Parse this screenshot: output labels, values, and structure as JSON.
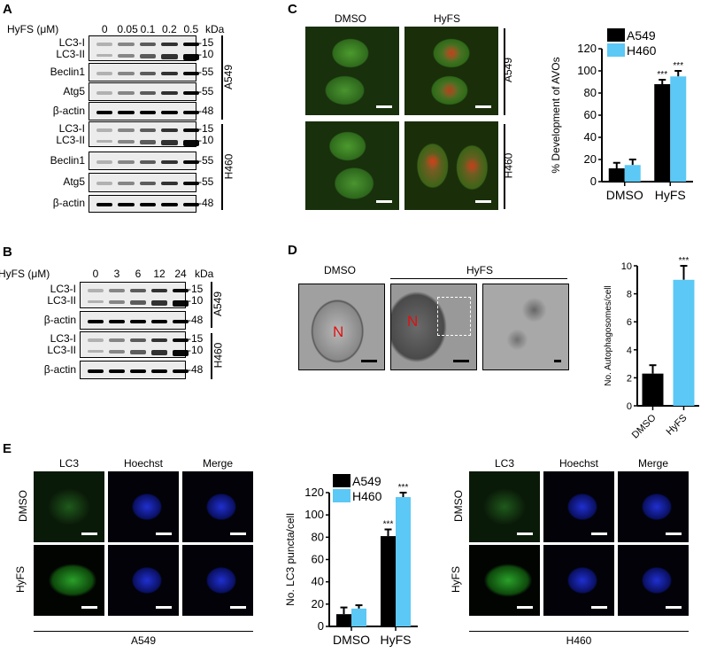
{
  "panels": {
    "a": "A",
    "b": "B",
    "c": "C",
    "d": "D",
    "e": "E"
  },
  "blotA": {
    "header": "HyFS (μM)",
    "doses": [
      "0",
      "0.05",
      "0.1",
      "0.2",
      "0.5"
    ],
    "unit": "kDa",
    "rows": [
      {
        "labels": [
          "LC3-I",
          "LC3-II"
        ],
        "kda": [
          "-15",
          "-10"
        ]
      },
      {
        "labels": [
          "Beclin1"
        ],
        "kda": [
          "-55"
        ]
      },
      {
        "labels": [
          "Atg5"
        ],
        "kda": [
          "-55"
        ]
      },
      {
        "labels": [
          "β-actin"
        ],
        "kda": [
          "-48"
        ]
      },
      {
        "labels": [
          "LC3-I",
          "LC3-II"
        ],
        "kda": [
          "-15",
          "-10"
        ]
      },
      {
        "labels": [
          "Beclin1"
        ],
        "kda": [
          "-55"
        ]
      },
      {
        "labels": [
          "Atg5"
        ],
        "kda": [
          "-55"
        ]
      },
      {
        "labels": [
          "β-actin"
        ],
        "kda": [
          "-48"
        ]
      }
    ],
    "groups": [
      "A549",
      "H460"
    ]
  },
  "blotB": {
    "header": "HyFS (μM)",
    "doses": [
      "0",
      "3",
      "6",
      "12",
      "24"
    ],
    "unit": "kDa",
    "rows": [
      {
        "labels": [
          "LC3-I",
          "LC3-II"
        ],
        "kda": [
          "-15",
          "-10"
        ]
      },
      {
        "labels": [
          "β-actin"
        ],
        "kda": [
          "-48"
        ]
      },
      {
        "labels": [
          "LC3-I",
          "LC3-II"
        ],
        "kda": [
          "-15",
          "-10"
        ]
      },
      {
        "labels": [
          "β-actin"
        ],
        "kda": [
          "-48"
        ]
      }
    ],
    "groups": [
      "A549",
      "H460"
    ]
  },
  "panelC": {
    "cols": [
      "DMSO",
      "HyFS"
    ],
    "rows": [
      "A549",
      "H460"
    ]
  },
  "panelD": {
    "cols": [
      "DMSO",
      "HyFS"
    ],
    "nucleus": "N"
  },
  "panelE": {
    "cols": [
      "LC3",
      "Hoechst",
      "Merge"
    ],
    "rows": [
      "DMSO",
      "HyFS"
    ],
    "left_cell": "A549",
    "right_cell": "H460"
  },
  "colors": {
    "A549": "#000000",
    "H460": "#5bc8f5"
  },
  "chart_data": [
    {
      "type": "bar",
      "ylabel": "% Development of AVOs",
      "categories": [
        "DMSO",
        "HyFS"
      ],
      "ylim": [
        0,
        120
      ],
      "yticks": [
        "0",
        "20",
        "40",
        "60",
        "80",
        "100",
        "120"
      ],
      "legend": "top-left",
      "series": [
        {
          "name": "A549",
          "values": [
            12,
            88
          ],
          "errors": [
            5,
            4
          ]
        },
        {
          "name": "H460",
          "values": [
            15,
            95
          ],
          "errors": [
            5,
            5
          ]
        }
      ],
      "annotations": [
        {
          "category": "HyFS",
          "series": "A549",
          "text": "***"
        },
        {
          "category": "HyFS",
          "series": "H460",
          "text": "***"
        }
      ]
    },
    {
      "type": "bar",
      "ylabel": "No. Autophagosomes/cell",
      "categories": [
        "DMSO",
        "HyFS"
      ],
      "ylim": [
        0,
        10
      ],
      "yticks": [
        "0",
        "2",
        "4",
        "6",
        "8",
        "10"
      ],
      "series": [
        {
          "values": [
            2.3,
            9.0
          ],
          "errors": [
            0.6,
            1.0
          ]
        }
      ],
      "annotations": [
        {
          "category": "HyFS",
          "text": "***"
        }
      ]
    },
    {
      "type": "bar",
      "ylabel": "No. LC3 puncta/cell",
      "categories": [
        "DMSO",
        "HyFS"
      ],
      "ylim": [
        0,
        120
      ],
      "yticks": [
        "0",
        "20",
        "40",
        "60",
        "80",
        "100",
        "120"
      ],
      "legend": "top-left",
      "series": [
        {
          "name": "A549",
          "values": [
            11,
            81
          ],
          "errors": [
            6,
            6
          ]
        },
        {
          "name": "H460",
          "values": [
            16,
            116
          ],
          "errors": [
            3,
            4
          ]
        }
      ],
      "annotations": [
        {
          "category": "HyFS",
          "series": "A549",
          "text": "***"
        },
        {
          "category": "HyFS",
          "series": "H460",
          "text": "***"
        }
      ]
    }
  ]
}
